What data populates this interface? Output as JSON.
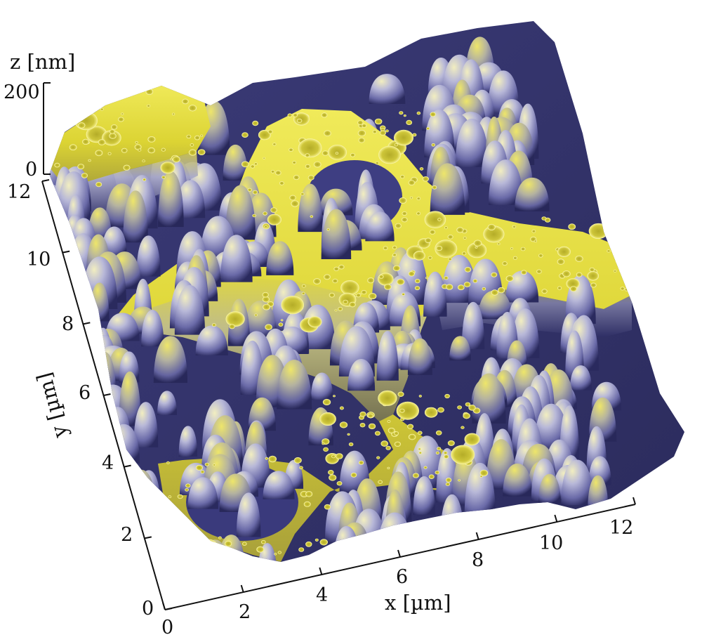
{
  "chart_data": {
    "type": "surface-3d",
    "title": "",
    "xlabel": "x [µm]",
    "ylabel": "y [µm]",
    "zlabel": "z [nm]",
    "xlim": [
      0,
      12
    ],
    "ylim": [
      0,
      12
    ],
    "zlim": [
      0,
      200
    ],
    "x_ticks": [
      "0",
      "2",
      "4",
      "6",
      "8",
      "10",
      "12"
    ],
    "y_ticks": [
      "0",
      "2",
      "4",
      "6",
      "8",
      "10",
      "12"
    ],
    "z_ticks": [
      "0",
      "200"
    ],
    "colors": {
      "high": "#e8e03a",
      "mid": "#8a8cc8",
      "low": "#3a3a78",
      "highlight": "#f4f0c0"
    }
  }
}
